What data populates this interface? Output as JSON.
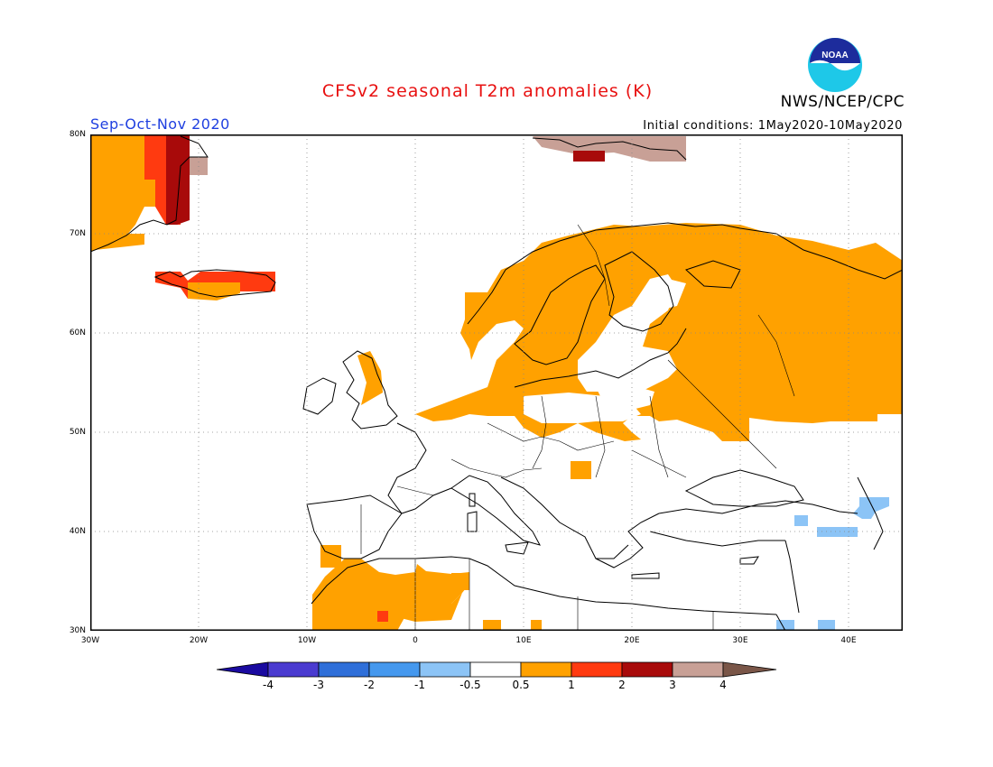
{
  "header": {
    "title": "CFSv2 seasonal T2m anomalies (K)",
    "agency": "NWS/NCEP/CPC",
    "season": "Sep-Oct-Nov 2020",
    "initial_conditions": "Initial conditions: 1May2020-10May2020",
    "logo_text": "NOAA"
  },
  "map": {
    "region": "Europe / North Atlantic",
    "lon_range": [
      -30,
      45
    ],
    "lat_range": [
      30,
      80
    ],
    "lat_labels": [
      "80N",
      "70N",
      "60N",
      "50N",
      "40N",
      "30N"
    ],
    "lon_labels": [
      "30W",
      "20W",
      "10W",
      "0",
      "10E",
      "20E",
      "30E",
      "40E"
    ],
    "gridlines": true
  },
  "legend": {
    "labels": [
      "-4",
      "-3",
      "-2",
      "-1",
      "-0.5",
      "0.5",
      "1",
      "2",
      "3",
      "4"
    ],
    "colors": [
      "#1a0aa0",
      "#4a3bd0",
      "#2f6fd9",
      "#4598ee",
      "#8cc4f6",
      "#ffffff",
      "#ffa100",
      "#ff3a10",
      "#a80a0a",
      "#c8a096",
      "#7a5648"
    ],
    "unit": "K"
  },
  "colors": {
    "title": "#e81010",
    "season": "#2040e0",
    "map_background": "#ffffff",
    "land_outline": "#000000"
  },
  "anomaly_regions": [
    {
      "area": "Greenland east coast",
      "category": "1 to 3",
      "color": "#ffa100"
    },
    {
      "area": "Iceland",
      "category": "1 to 2",
      "color": "#ff3a10"
    },
    {
      "area": "Scandinavia and NW Russia",
      "category": "0.5 to 1",
      "color": "#ffa100"
    },
    {
      "area": "Svalbard",
      "category": "3 to 4",
      "color": "#c8a096"
    },
    {
      "area": "Morocco and Algeria",
      "category": "0.5 to 1",
      "color": "#ffa100"
    },
    {
      "area": "Caucasus and Levant",
      "category": "-1 to -0.5",
      "color": "#8cc4f6"
    }
  ]
}
